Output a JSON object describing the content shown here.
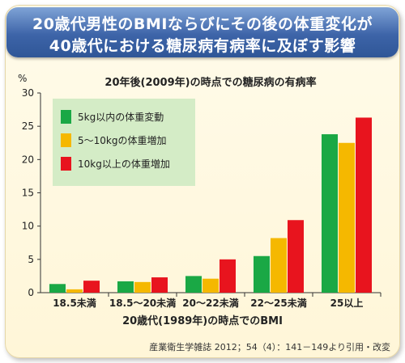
{
  "header": {
    "title_line1": "20歳代男性のBMIならびにその後の体重変化が",
    "title_line2": "40歳代における糖尿病有病率に及ぼす影響"
  },
  "source": "産業衛生学雑誌 2012；54（4）：141－149より引用・改変",
  "chart_data": {
    "type": "bar",
    "title": "20年後(2009年)の時点での糖尿病の有病率",
    "xlabel": "20歳代(1989年)の時点でのBMI",
    "ylabel": "%",
    "ylim": [
      0,
      30
    ],
    "yticks": [
      0,
      5,
      10,
      15,
      20,
      25,
      30
    ],
    "categories": [
      "18.5未満",
      "18.5〜20未満",
      "20〜22未満",
      "22〜25未満",
      "25以上"
    ],
    "series": [
      {
        "name": "5kg以内の体重変動",
        "color": "#1aa845",
        "values": [
          1.3,
          1.7,
          2.5,
          5.5,
          23.8
        ]
      },
      {
        "name": "5〜10kgの体重増加",
        "color": "#f5b800",
        "values": [
          0.5,
          1.6,
          2.1,
          8.2,
          22.5
        ]
      },
      {
        "name": "10kg以上の体重増加",
        "color": "#e8141e",
        "values": [
          1.8,
          2.3,
          5.0,
          10.9,
          26.3
        ]
      }
    ],
    "grid": false,
    "legend_position": "top-left"
  }
}
